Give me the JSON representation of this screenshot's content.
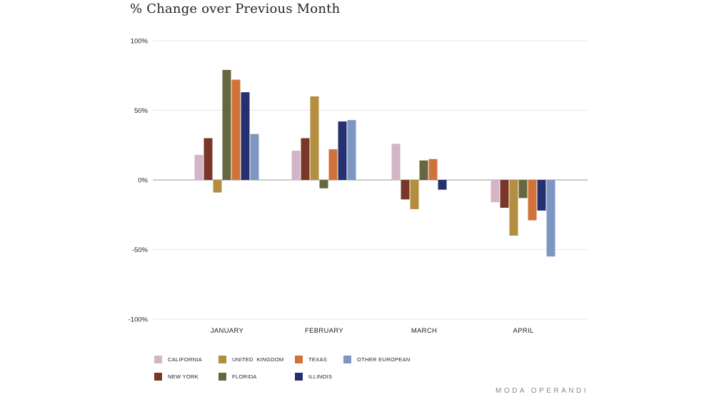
{
  "title": "% Change over Previous Month",
  "brand": "MODA OPERANDI",
  "chart_data": {
    "type": "bar",
    "title": "% Change over Previous Month",
    "categories": [
      "JANUARY",
      "FEBRUARY",
      "MARCH",
      "APRIL"
    ],
    "ylim": [
      -100,
      100
    ],
    "yticks": [
      100,
      50,
      0,
      -50,
      -100
    ],
    "ytick_labels": [
      "100%",
      "50%",
      "0%",
      "-50%",
      "-100%"
    ],
    "grid": true,
    "legend_position": "bottom-left",
    "series": [
      {
        "name": "CALIFORNIA",
        "color": "#d4b5c8",
        "values": [
          18,
          21,
          26,
          -16
        ]
      },
      {
        "name": "NEW YORK",
        "color": "#7a3728",
        "values": [
          30,
          30,
          -14,
          -20
        ]
      },
      {
        "name": "UNITED  KINGDOM",
        "color": "#b38e40",
        "values": [
          -9,
          60,
          -21,
          -40
        ]
      },
      {
        "name": "FLORIDA",
        "color": "#666640",
        "values": [
          79,
          -6,
          14,
          -13
        ]
      },
      {
        "name": "TEXAS",
        "color": "#d0723a",
        "values": [
          72,
          22,
          15,
          -29
        ]
      },
      {
        "name": "ILLINOIS",
        "color": "#243070",
        "values": [
          63,
          42,
          -7,
          -22
        ]
      },
      {
        "name": "OTHER EUROPEAN",
        "color": "#7e96c2",
        "values": [
          33,
          43,
          null,
          -55
        ]
      }
    ]
  },
  "legend": [
    {
      "label": "CALIFORNIA",
      "color": "#d4b5c8"
    },
    {
      "label": "UNITED  KINGDOM",
      "color": "#b38e40"
    },
    {
      "label": "TEXAS",
      "color": "#d0723a"
    },
    {
      "label": "OTHER EUROPEAN",
      "color": "#7e96c2"
    },
    {
      "label": "NEW YORK",
      "color": "#7a3728"
    },
    {
      "label": "FLORIDA",
      "color": "#666640"
    },
    {
      "label": "ILLINOIS",
      "color": "#243070"
    }
  ]
}
